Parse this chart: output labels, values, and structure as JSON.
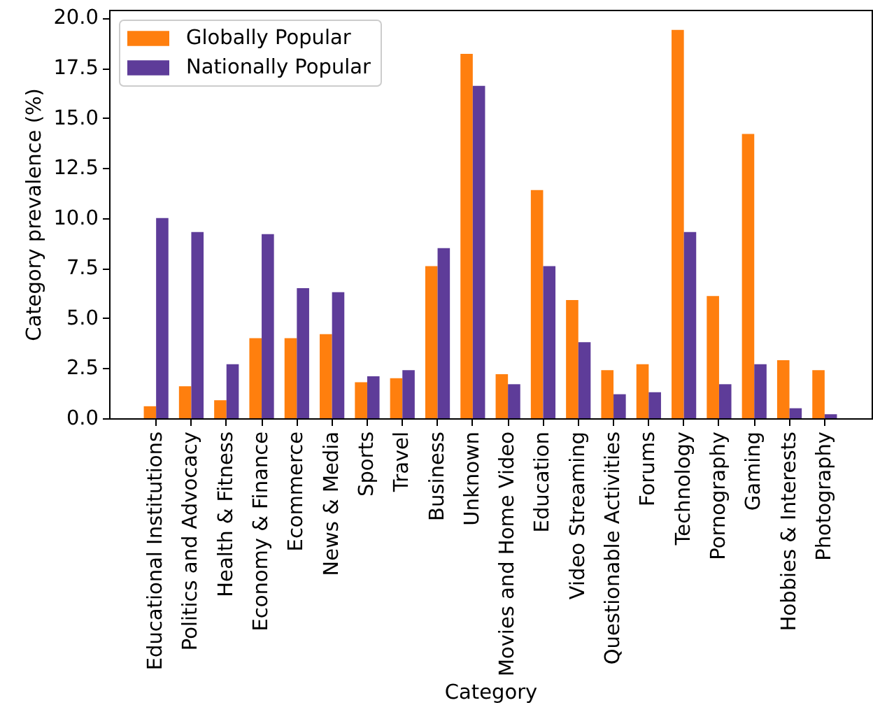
{
  "chart_data": {
    "type": "bar",
    "xlabel": "Category",
    "ylabel": "Category prevalence (%)",
    "categories": [
      "Educational Institutions",
      "Politics and Advocacy",
      "Health & Fitness",
      "Economy & Finance",
      "Ecommerce",
      "News & Media",
      "Sports",
      "Travel",
      "Business",
      "Unknown",
      "Movies and Home Video",
      "Education",
      "Video Streaming",
      "Questionable Activities",
      "Forums",
      "Technology",
      "Pornography",
      "Gaming",
      "Hobbies & Interests",
      "Photography"
    ],
    "series": [
      {
        "name": "Globally Popular",
        "color": "#ff7f0e",
        "values": [
          0.6,
          1.6,
          0.9,
          4.0,
          4.0,
          4.2,
          1.8,
          2.0,
          7.6,
          18.2,
          2.2,
          11.4,
          5.9,
          2.4,
          2.7,
          19.4,
          6.1,
          14.2,
          2.9,
          2.4
        ]
      },
      {
        "name": "Nationally Popular",
        "color": "#5e3c99",
        "values": [
          10.0,
          9.3,
          2.7,
          9.2,
          6.5,
          6.3,
          2.1,
          2.4,
          8.5,
          16.6,
          1.7,
          7.6,
          3.8,
          1.2,
          1.3,
          9.3,
          1.7,
          2.7,
          0.5,
          0.2
        ]
      }
    ],
    "ylim": [
      0,
      20.4
    ],
    "yticks": [
      {
        "value": 0,
        "label": "0.0"
      },
      2.5,
      {
        "value": 5,
        "label": "5.0"
      },
      7.5,
      {
        "value": 10,
        "label": "10.0"
      },
      12.5,
      {
        "value": 15,
        "label": "15.0"
      },
      17.5,
      {
        "value": 20,
        "label": "20.0"
      }
    ],
    "legend": "top left"
  }
}
